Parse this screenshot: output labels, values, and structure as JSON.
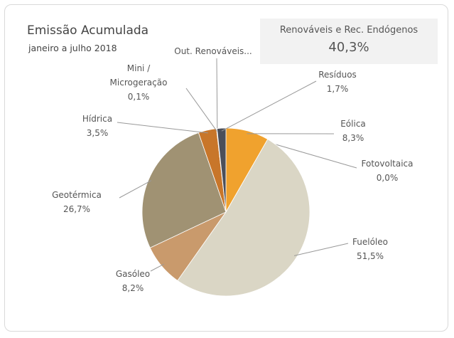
{
  "chart_data": {
    "type": "pie",
    "title": "Emissão Acumulada",
    "subtitle": "janeiro a julho 2018",
    "summary": {
      "label": "Renováveis e Rec. Endógenos",
      "value": 40.3,
      "value_label": "40,3%"
    },
    "categories": [
      "Eólica",
      "Fotovoltaica",
      "Fuelóleo",
      "Gasóleo",
      "Geotérmica",
      "Hídrica",
      "Mini /\nMicrogeração",
      "Out. Renováveis...",
      "Resíduos"
    ],
    "values": [
      8.3,
      0.0,
      51.5,
      8.2,
      26.7,
      3.5,
      0.1,
      0,
      1.7
    ],
    "value_labels": [
      "8,3%",
      "0,0%",
      "51,5%",
      "8,2%",
      "26,7%",
      "3,5%",
      "0,1%",
      null,
      "1,7%"
    ],
    "colors": [
      "#F0A22E",
      "#E8C070",
      "#DAD6C5",
      "#C99A6C",
      "#A09273",
      "#C8762A",
      "#8C6A3C",
      "#6E6E6E",
      "#4B4F5A"
    ]
  }
}
